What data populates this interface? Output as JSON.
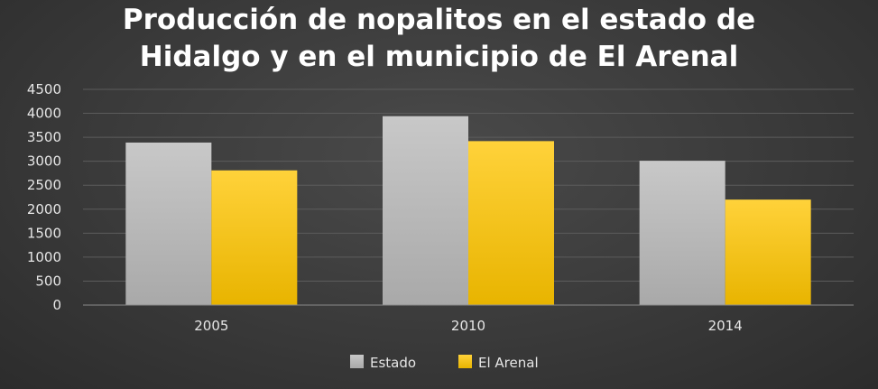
{
  "chart_data": {
    "type": "bar",
    "title_lines": [
      "Producción de nopalitos en el estado de",
      "Hidalgo y en el municipio de El Arenal"
    ],
    "categories": [
      "2005",
      "2010",
      "2014"
    ],
    "series": [
      {
        "name": "Estado",
        "values": [
          3390,
          3940,
          3010
        ],
        "color": "#b8b8b8"
      },
      {
        "name": "El Arenal",
        "values": [
          2810,
          3420,
          2200
        ],
        "color": "#f5c200"
      }
    ],
    "ylim": [
      0,
      4500
    ],
    "yticks": [
      0,
      500,
      1000,
      1500,
      2000,
      2500,
      3000,
      3500,
      4000,
      4500
    ],
    "grid": true,
    "legend": "bottom"
  }
}
